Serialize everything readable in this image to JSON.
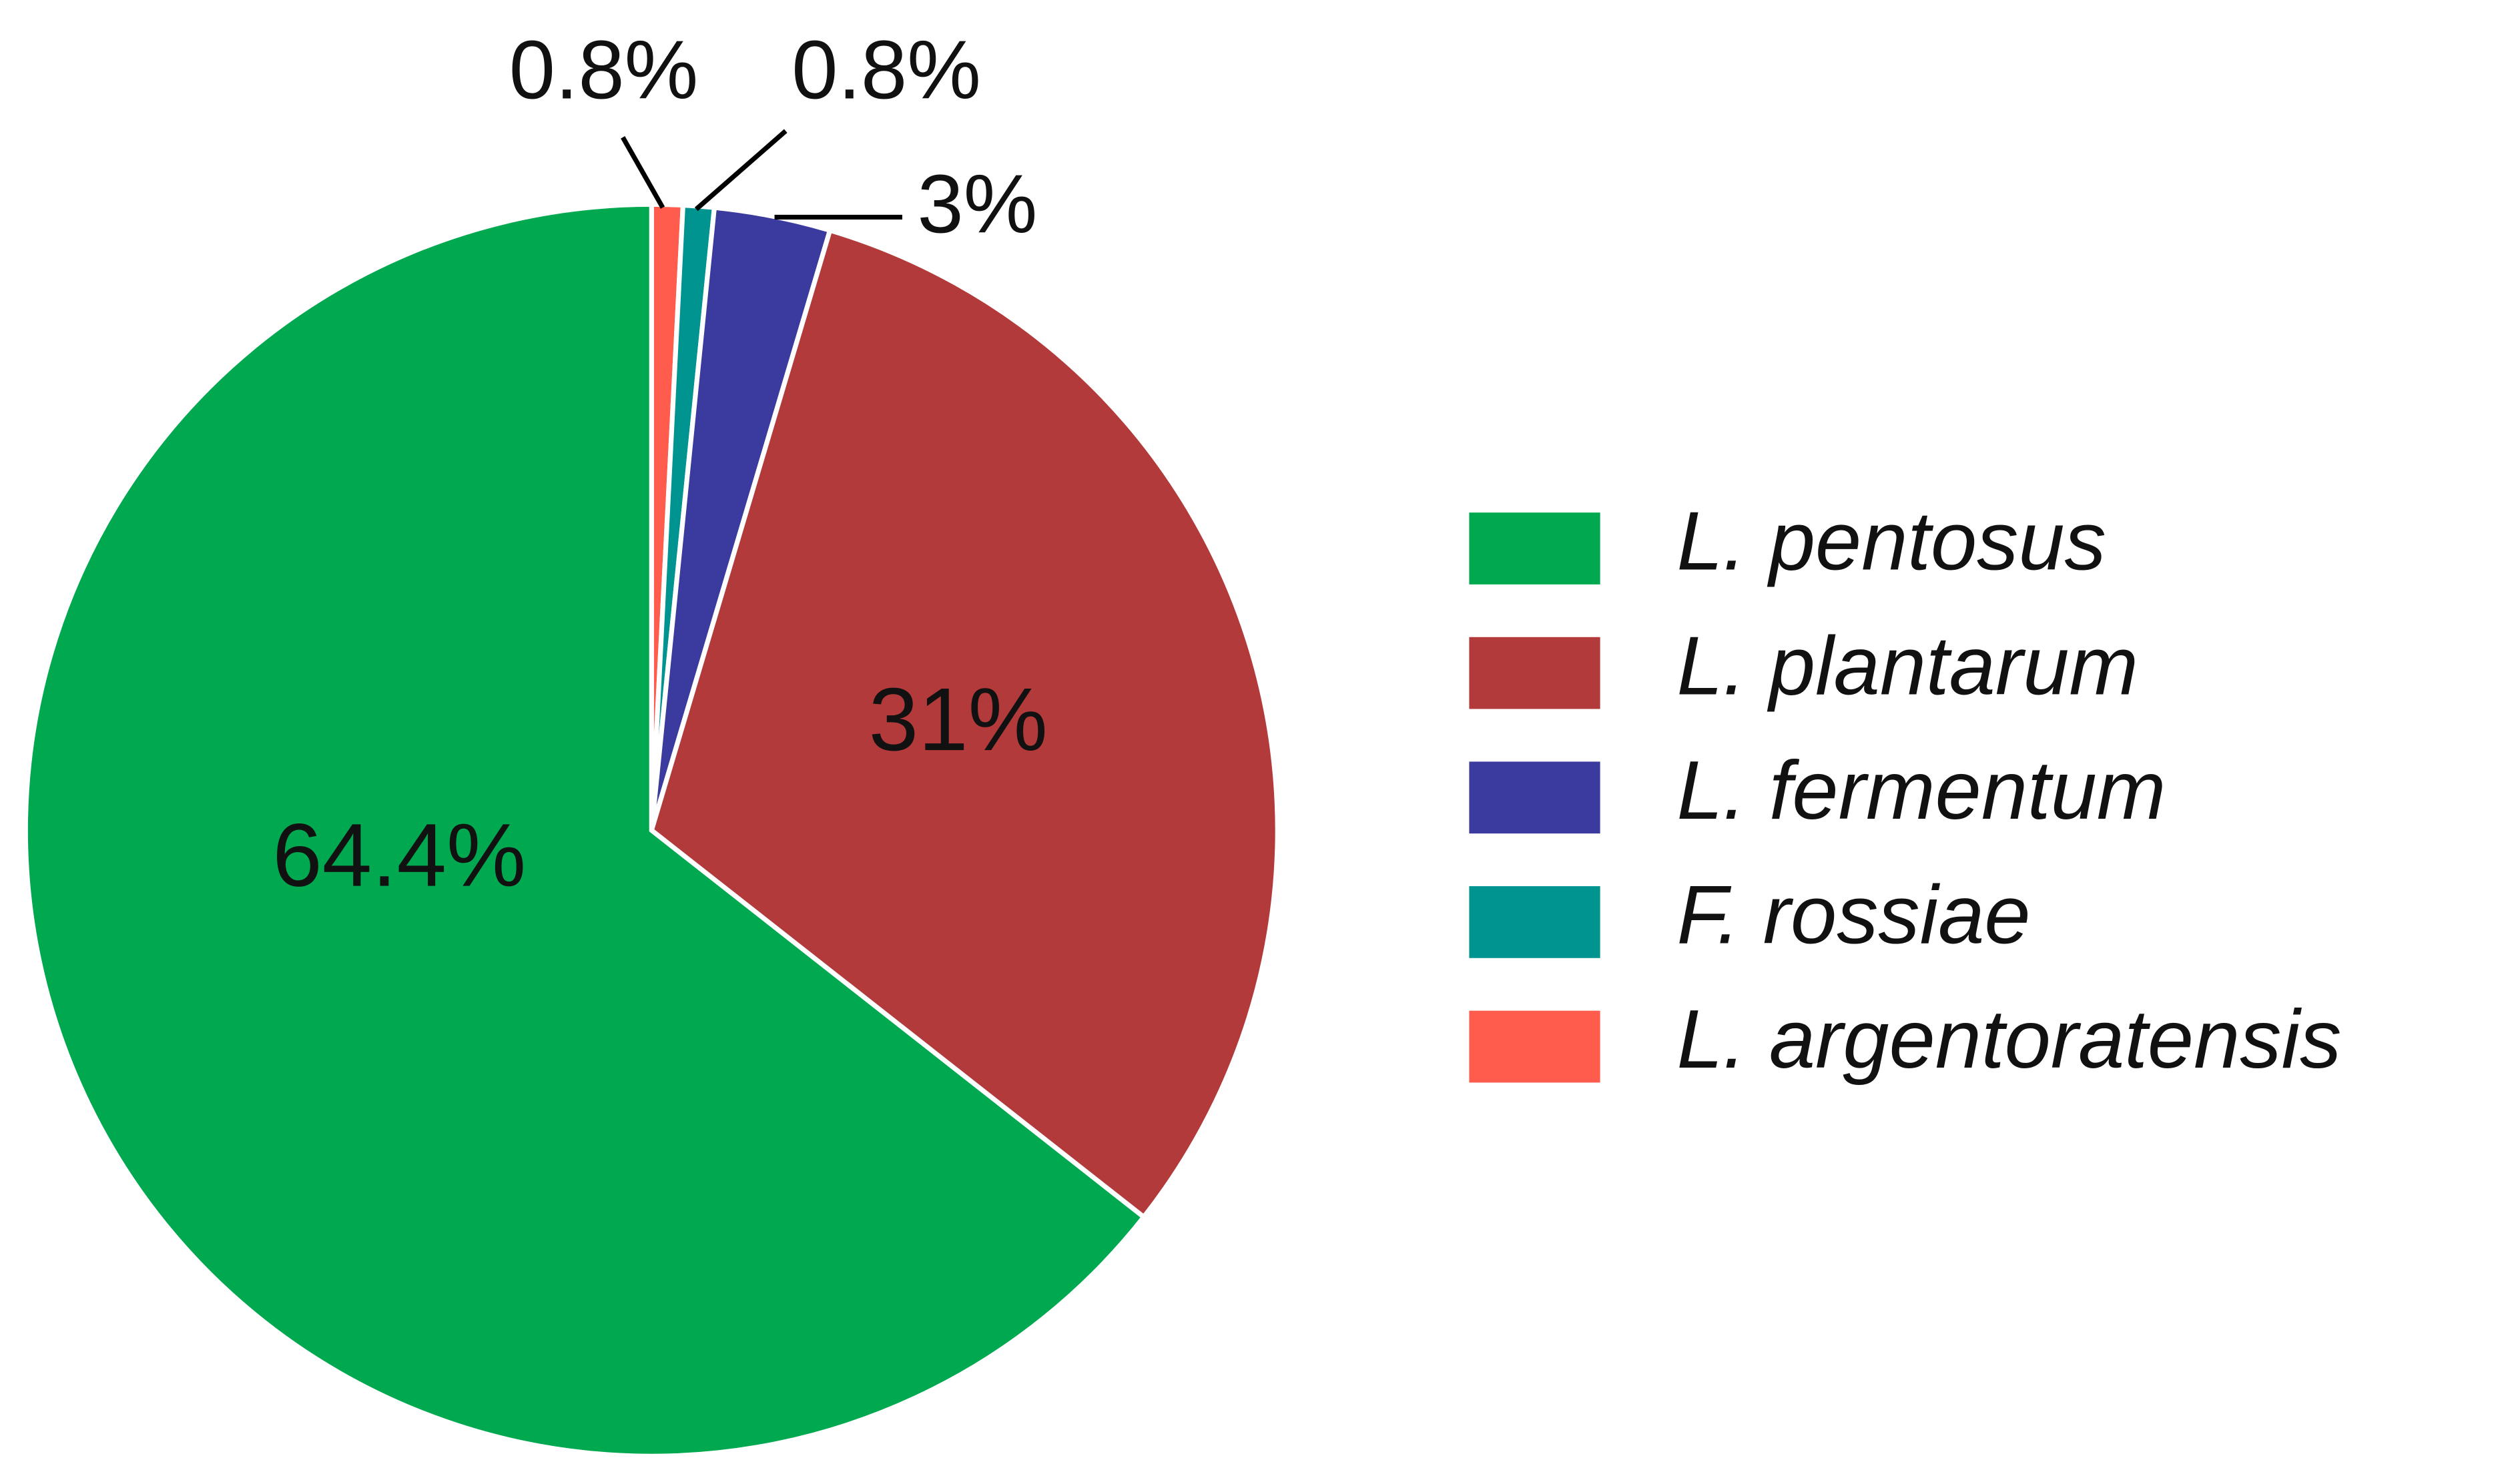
{
  "chart_data": {
    "type": "pie",
    "categories": [
      "L. pentosus",
      "L. plantarum",
      "L. fermentum",
      "F. rossiae",
      "L. argentoratensis"
    ],
    "values": [
      64.4,
      31,
      3,
      0.8,
      0.8
    ],
    "value_labels": [
      "64.4%",
      "31%",
      "3%",
      "0.8%",
      "0.8%"
    ],
    "colors": [
      "#00a84f",
      "#b33a3a",
      "#3b3b9f",
      "#009490",
      "#ff5c4d"
    ],
    "legend": "right"
  }
}
